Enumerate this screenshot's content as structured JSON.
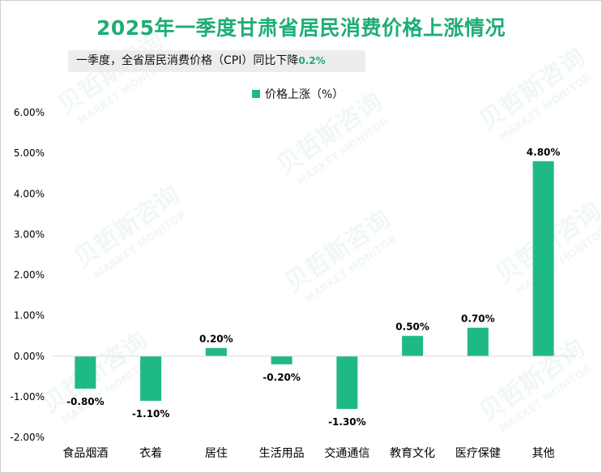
{
  "title": "2025年一季度甘肃省居民消费价格上涨情况",
  "subtitle": {
    "text": "一季度，全省居民消费价格（CPI）同比下降",
    "value": "0.2%"
  },
  "watermark": {
    "cn": "贝哲斯咨询",
    "en": "MARKET MONITOR"
  },
  "colors": {
    "bar": "#1fb985",
    "title": "#1fad74",
    "axis": "#d9d9d9"
  },
  "chart_data": {
    "type": "bar",
    "categories": [
      "食品烟酒",
      "衣着",
      "居住",
      "生活用品",
      "交通通信",
      "教育文化",
      "医疗保健",
      "其他"
    ],
    "series": [
      {
        "name": "价格上涨（%）",
        "values": [
          -0.8,
          -1.1,
          0.2,
          -0.2,
          -1.3,
          0.5,
          0.7,
          4.8
        ]
      }
    ],
    "value_labels": [
      "-0.80%",
      "-1.10%",
      "0.20%",
      "-0.20%",
      "-1.30%",
      "0.50%",
      "0.70%",
      "4.80%"
    ],
    "ylim": [
      -2,
      6
    ],
    "yticks": [
      6,
      5,
      4,
      3,
      2,
      1,
      0,
      -1,
      -2
    ],
    "ytick_labels": [
      "6.00%",
      "5.00%",
      "4.00%",
      "3.00%",
      "2.00%",
      "1.00%",
      "0.00%",
      "-1.00%",
      "-2.00%"
    ],
    "legend_position": "top-center",
    "grid": false
  }
}
